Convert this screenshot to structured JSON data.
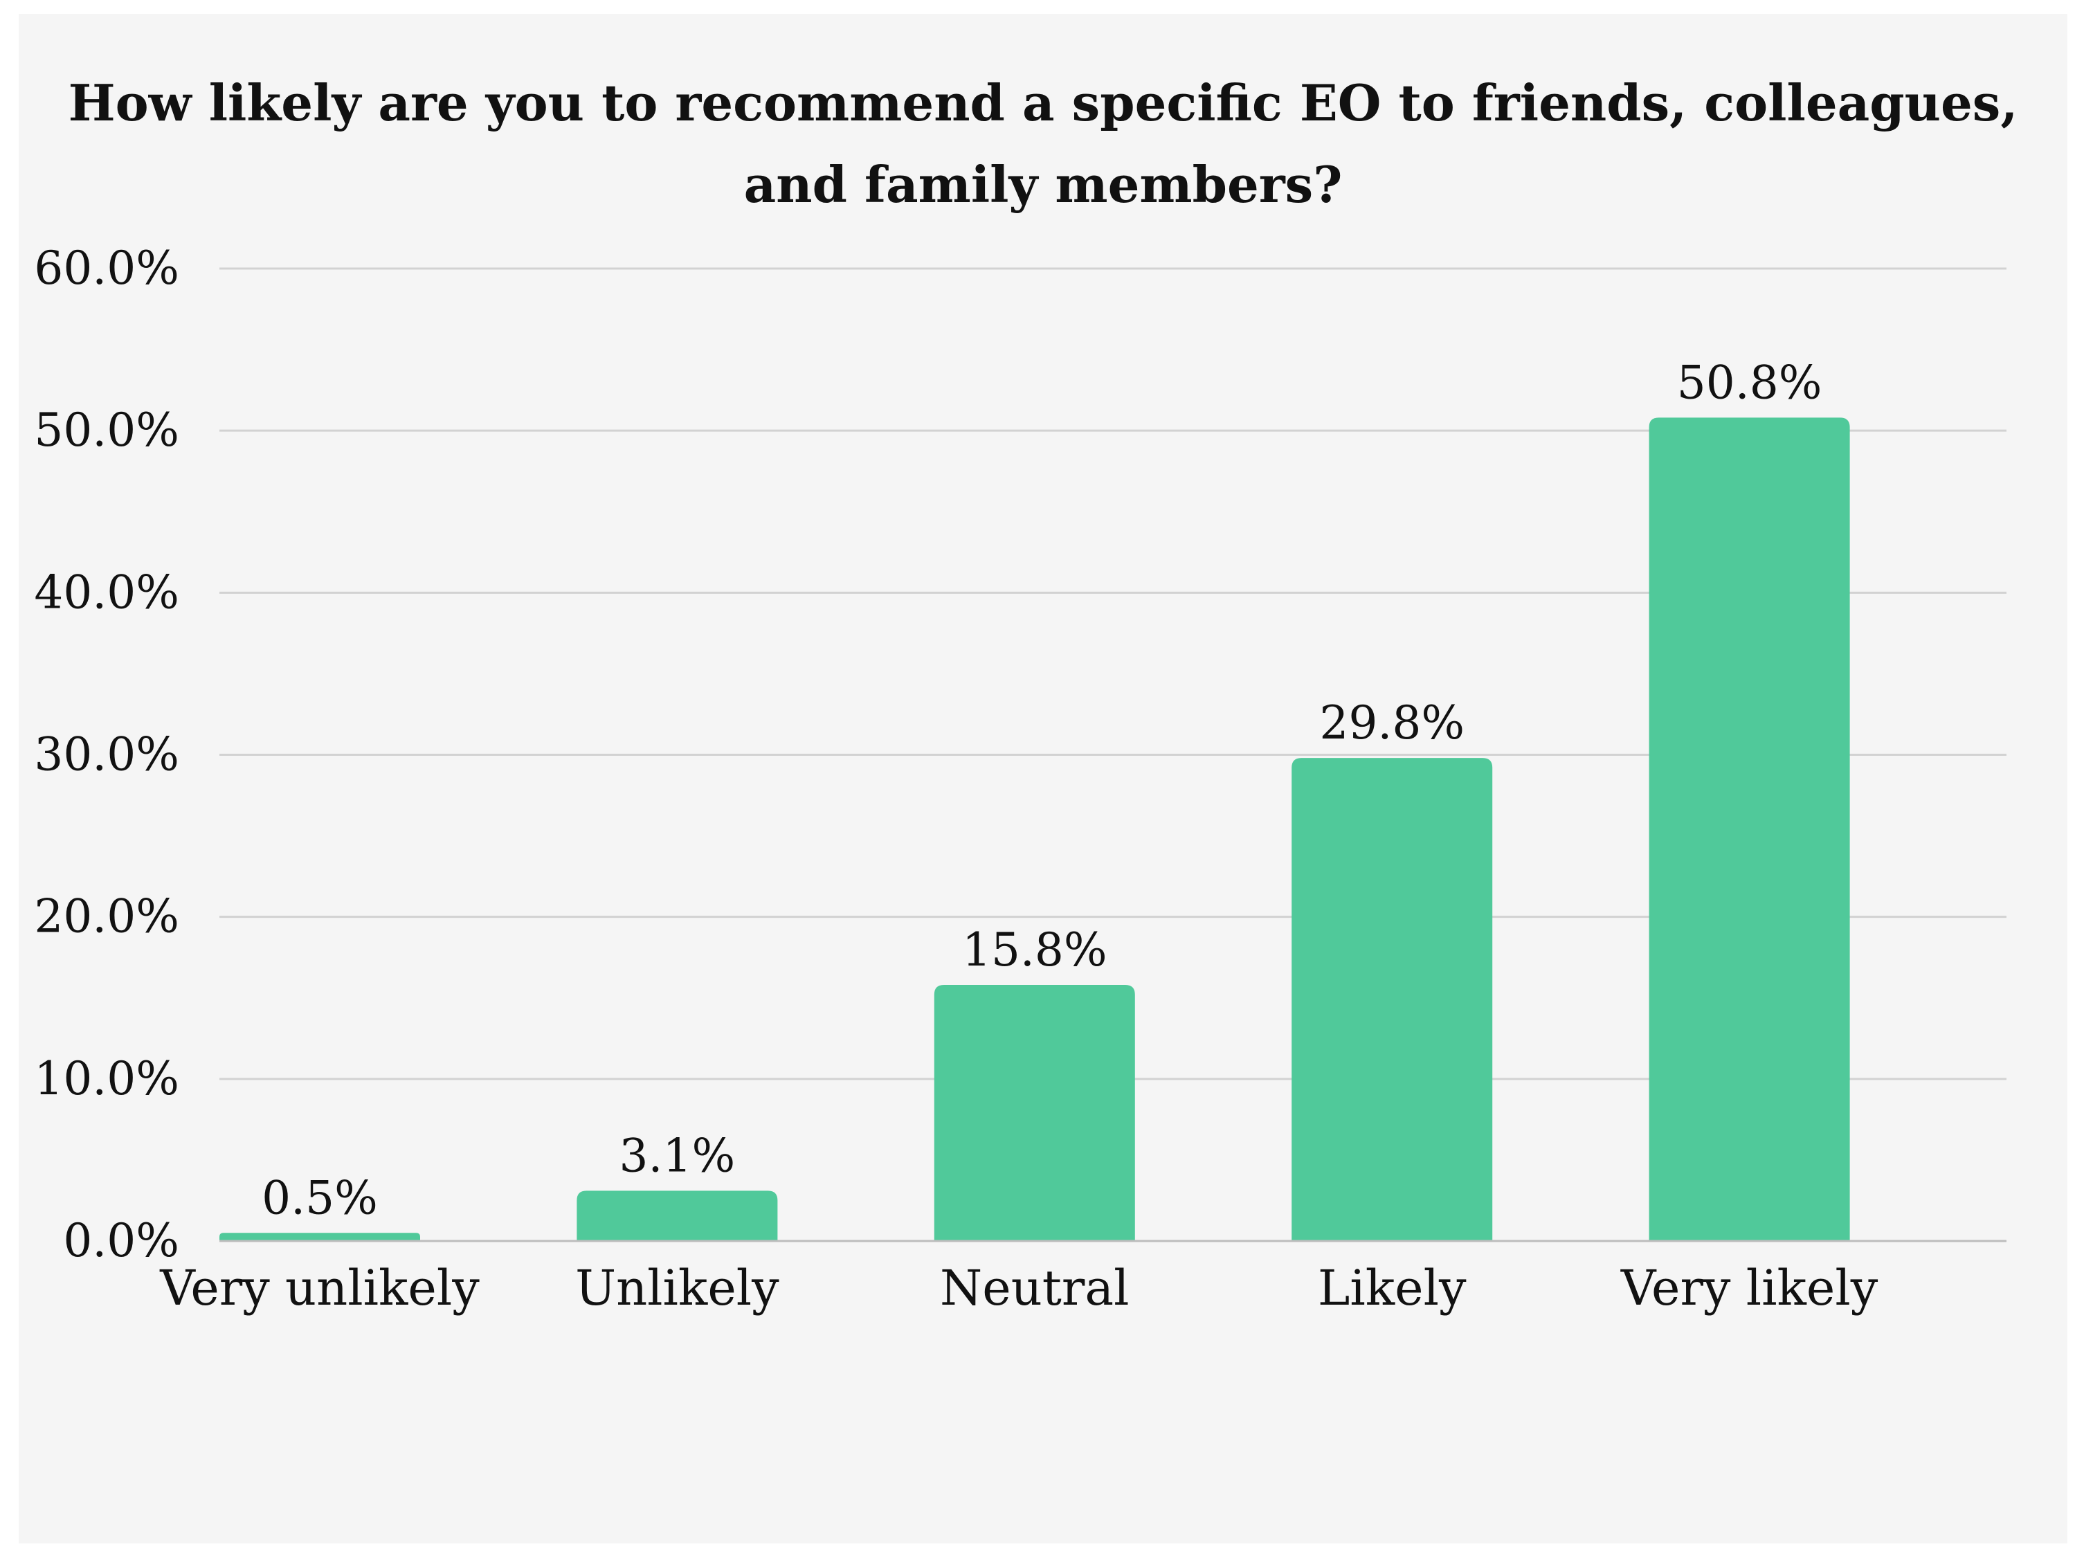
{
  "chart_data": {
    "type": "bar",
    "title_lines": [
      "How likely are you to recommend a specific EO to friends, colleagues,",
      "and family members?"
    ],
    "categories": [
      "Very unlikely",
      "Unlikely",
      "Neutral",
      "Likely",
      "Very likely"
    ],
    "values": [
      0.5,
      3.1,
      15.8,
      29.8,
      50.8
    ],
    "data_labels": [
      "0.5%",
      "3.1%",
      "15.8%",
      "29.8%",
      "50.8%"
    ],
    "ylim": [
      0,
      60
    ],
    "yticks": [
      0,
      10,
      20,
      30,
      40,
      50,
      60
    ],
    "ytick_labels": [
      "0.0%",
      "10.0%",
      "20.0%",
      "30.0%",
      "40.0%",
      "50.0%",
      "60.0%"
    ],
    "grid": true,
    "legend": "none",
    "bar_color": "#50c99a",
    "grid_color": "#d2d2d2",
    "background_color": "#f5f5f5"
  }
}
